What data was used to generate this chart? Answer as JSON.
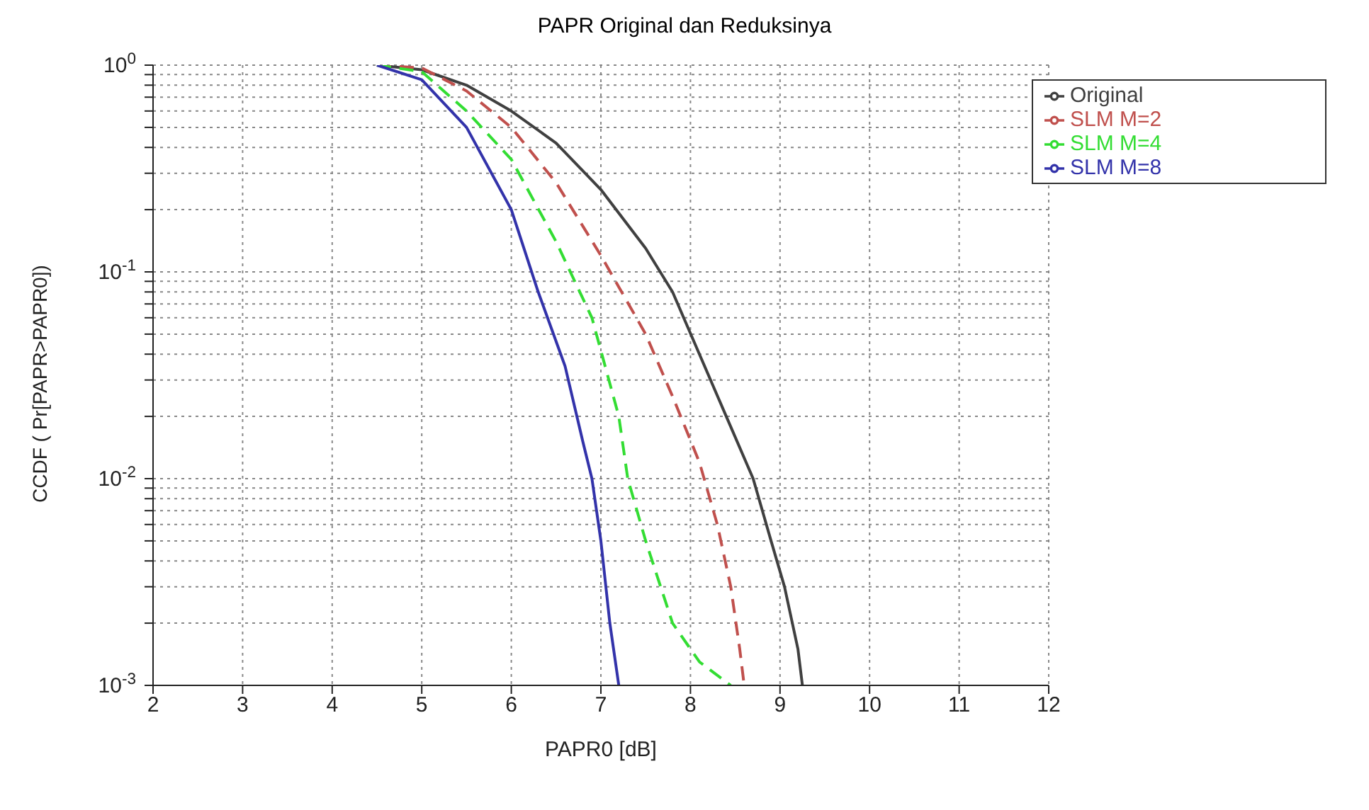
{
  "chart_data": {
    "type": "line",
    "title": "PAPR Original dan Reduksinya",
    "xlabel": "PAPR0 [dB]",
    "ylabel": "CCDF ( Pr[PAPR>PAPR0])",
    "log": "y",
    "grid": true,
    "legend": "top right",
    "marker": "none",
    "xlim": [
      2,
      12
    ],
    "xticks": [
      2,
      3,
      4,
      5,
      6,
      7,
      8,
      9,
      10,
      11,
      12
    ],
    "ylim": [
      0.001,
      1
    ],
    "yticks": [
      {
        "value": 0.001,
        "label": "10$^{-3}$"
      },
      {
        "value": 0.002,
        "label": null
      },
      {
        "value": 0.003,
        "label": null
      },
      {
        "value": 0.004,
        "label": null
      },
      {
        "value": 0.005,
        "label": null
      },
      {
        "value": 0.006,
        "label": null
      },
      {
        "value": 0.007,
        "label": null
      },
      {
        "value": 0.008,
        "label": null
      },
      {
        "value": 0.009,
        "label": null
      },
      {
        "value": 0.01,
        "label": "10$^{-2}$"
      },
      {
        "value": 0.02,
        "label": null
      },
      {
        "value": 0.03,
        "label": null
      },
      {
        "value": 0.04,
        "label": null
      },
      {
        "value": 0.05,
        "label": null
      },
      {
        "value": 0.06,
        "label": null
      },
      {
        "value": 0.07,
        "label": null
      },
      {
        "value": 0.08,
        "label": null
      },
      {
        "value": 0.09,
        "label": null
      },
      {
        "value": 0.1,
        "label": "10$^{-1}$"
      },
      {
        "value": 0.2,
        "label": null
      },
      {
        "value": 0.3,
        "label": null
      },
      {
        "value": 0.4,
        "label": null
      },
      {
        "value": 0.5,
        "label": null
      },
      {
        "value": 0.6,
        "label": null
      },
      {
        "value": 0.7,
        "label": null
      },
      {
        "value": 0.8,
        "label": null
      },
      {
        "value": 0.9,
        "label": null
      },
      {
        "value": 1,
        "label": "10$^{0}$"
      }
    ],
    "series": [
      {
        "name": "Original",
        "color": "#404040",
        "line_style": "solid",
        "x": [
          4.5,
          5,
          5.5,
          6,
          6.5,
          7,
          7.5,
          7.8,
          8.1,
          8.4,
          8.7,
          8.9,
          9.05,
          9.2,
          9.25
        ],
        "values": [
          1,
          0.95,
          0.8,
          0.6,
          0.42,
          0.25,
          0.13,
          0.08,
          0.04,
          0.02,
          0.01,
          0.005,
          0.003,
          0.0015,
          0.001
        ]
      },
      {
        "name": "SLM M=2",
        "color": "#c0504d",
        "line_style": "dashed",
        "x": [
          4.5,
          5,
          5.5,
          6,
          6.5,
          7,
          7.5,
          7.8,
          8.1,
          8.3,
          8.45,
          8.55,
          8.6
        ],
        "values": [
          1,
          0.97,
          0.75,
          0.5,
          0.27,
          0.12,
          0.05,
          0.025,
          0.012,
          0.006,
          0.003,
          0.0015,
          0.001
        ]
      },
      {
        "name": "SLM M=4",
        "color": "#33dd33",
        "line_style": "dashed",
        "x": [
          4.5,
          5,
          5.5,
          6,
          6.5,
          6.9,
          7.2,
          7.3,
          7.5,
          7.8,
          8.1,
          8.45
        ],
        "values": [
          1,
          0.93,
          0.6,
          0.35,
          0.14,
          0.06,
          0.02,
          0.01,
          0.005,
          0.002,
          0.0013,
          0.001
        ]
      },
      {
        "name": "SLM M=8",
        "color": "#3333aa",
        "line_style": "solid",
        "x": [
          4.5,
          5,
          5.5,
          6,
          6.3,
          6.6,
          6.8,
          6.9,
          7,
          7.1,
          7.2
        ],
        "values": [
          1,
          0.85,
          0.5,
          0.2,
          0.08,
          0.035,
          0.015,
          0.01,
          0.005,
          0.002,
          0.001
        ]
      }
    ]
  }
}
